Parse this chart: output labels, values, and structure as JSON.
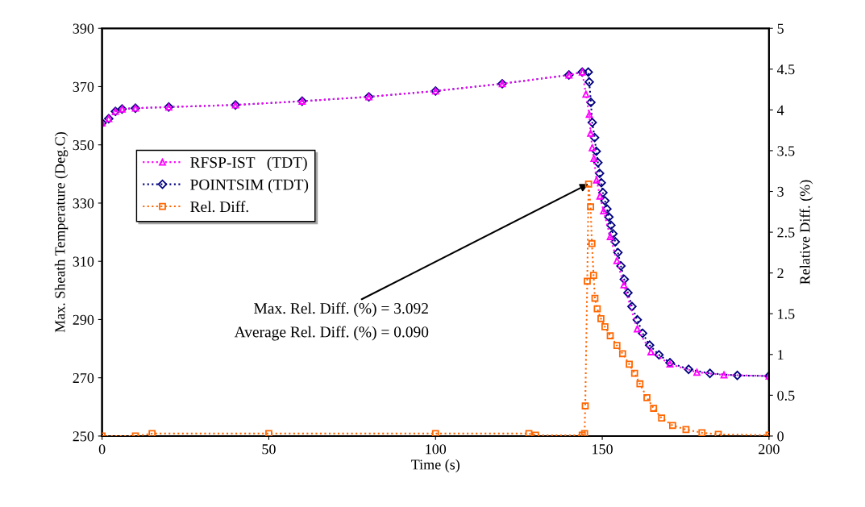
{
  "chart_data": {
    "type": "line",
    "xlabel": "Time (s)",
    "ylabel": "Max. Sheath Temperature (Deg.C)",
    "y2label": "Relative Diff. (%)",
    "xlim": [
      0,
      200
    ],
    "xticks": [
      0,
      50,
      100,
      150,
      200
    ],
    "ylim": [
      250,
      390
    ],
    "yticks": [
      250,
      270,
      290,
      310,
      330,
      350,
      370,
      390
    ],
    "y2lim": [
      0,
      5
    ],
    "y2ticks": [
      0,
      0.5,
      1,
      1.5,
      2,
      2.5,
      3,
      3.5,
      4,
      4.5,
      5
    ],
    "grid": false,
    "legend": "left",
    "line_style": "dotted",
    "annotations": [
      {
        "text": "Max. Rel. Diff. (%) = 3.092",
        "x": 145.9,
        "y": 336.6
      },
      "Average Rel. Diff. (%) = 0.090"
    ],
    "series": [
      {
        "name": "RFSP-IST   (TDT)",
        "color": "#ff00ff",
        "marker": "triangle",
        "x": [
          0,
          2,
          4,
          6,
          10,
          20,
          40,
          60,
          80,
          100,
          120,
          140,
          144,
          145.1,
          146.1,
          146.5,
          147.0,
          147.5,
          148.3,
          149.3,
          150.4,
          152.4,
          154.4,
          156.5,
          160.5,
          164.6,
          170.3,
          178.4,
          186.5,
          200
        ],
        "values": [
          357.5,
          359,
          361.5,
          362.3,
          362.6,
          363,
          363.7,
          365,
          366.5,
          368.5,
          371,
          374,
          375,
          367.4,
          360.5,
          354,
          349,
          345.3,
          337.9,
          332.4,
          327.3,
          318.5,
          310.2,
          301.9,
          286.8,
          278.9,
          274.7,
          271.9,
          271.0,
          270.6
        ]
      },
      {
        "name": "POINTSIM (TDT)",
        "color": "#000080",
        "marker": "diamond",
        "x": [
          0,
          2,
          4,
          6,
          10,
          20,
          40,
          60,
          80,
          100,
          120,
          140,
          144,
          145.8,
          146.1,
          146.6,
          147.0,
          147.7,
          148.2,
          148.7,
          149.2,
          149.7,
          150.2,
          150.8,
          151.4,
          152.0,
          152.6,
          153.2,
          153.9,
          154.7,
          155.6,
          156.6,
          157.7,
          158.9,
          160.5,
          162.1,
          164.2,
          167.0,
          170.3,
          175.9,
          182.3,
          190.5,
          200
        ],
        "values": [
          357.5,
          359,
          361.5,
          362.3,
          362.6,
          363,
          363.7,
          365,
          366.5,
          368.5,
          371,
          374,
          375,
          375.0,
          371.6,
          364.6,
          357.7,
          352.5,
          347.8,
          343.9,
          340.2,
          337,
          333.6,
          330.8,
          328,
          325.2,
          322.4,
          319.5,
          316.7,
          313,
          308.4,
          303.8,
          299.2,
          294.5,
          289.9,
          285.3,
          281.2,
          277.9,
          275.2,
          272.9,
          271.5,
          270.8,
          270.6
        ]
      },
      {
        "name": "Rel. Diff.",
        "color": "#ff6600",
        "marker": "square",
        "axis": "y2",
        "x": [
          0,
          10,
          15,
          50,
          100,
          128,
          130,
          144,
          144.7,
          144.9,
          145.5,
          145.9,
          146.5,
          146.9,
          147.4,
          147.8,
          148.5,
          149.6,
          150.8,
          152.4,
          154.4,
          156.1,
          158.1,
          159.7,
          161.3,
          163.4,
          165.4,
          167.8,
          171.1,
          175.1,
          179.9,
          184.8,
          200
        ],
        "values": [
          0,
          0,
          0.03,
          0.03,
          0.03,
          0.03,
          0.01,
          0.01,
          0.03,
          0.37,
          1.9,
          3.09,
          2.81,
          2.36,
          1.97,
          1.69,
          1.56,
          1.44,
          1.34,
          1.23,
          1.11,
          1.01,
          0.88,
          0.77,
          0.64,
          0.47,
          0.34,
          0.22,
          0.13,
          0.08,
          0.04,
          0.02,
          0.01
        ]
      }
    ]
  }
}
